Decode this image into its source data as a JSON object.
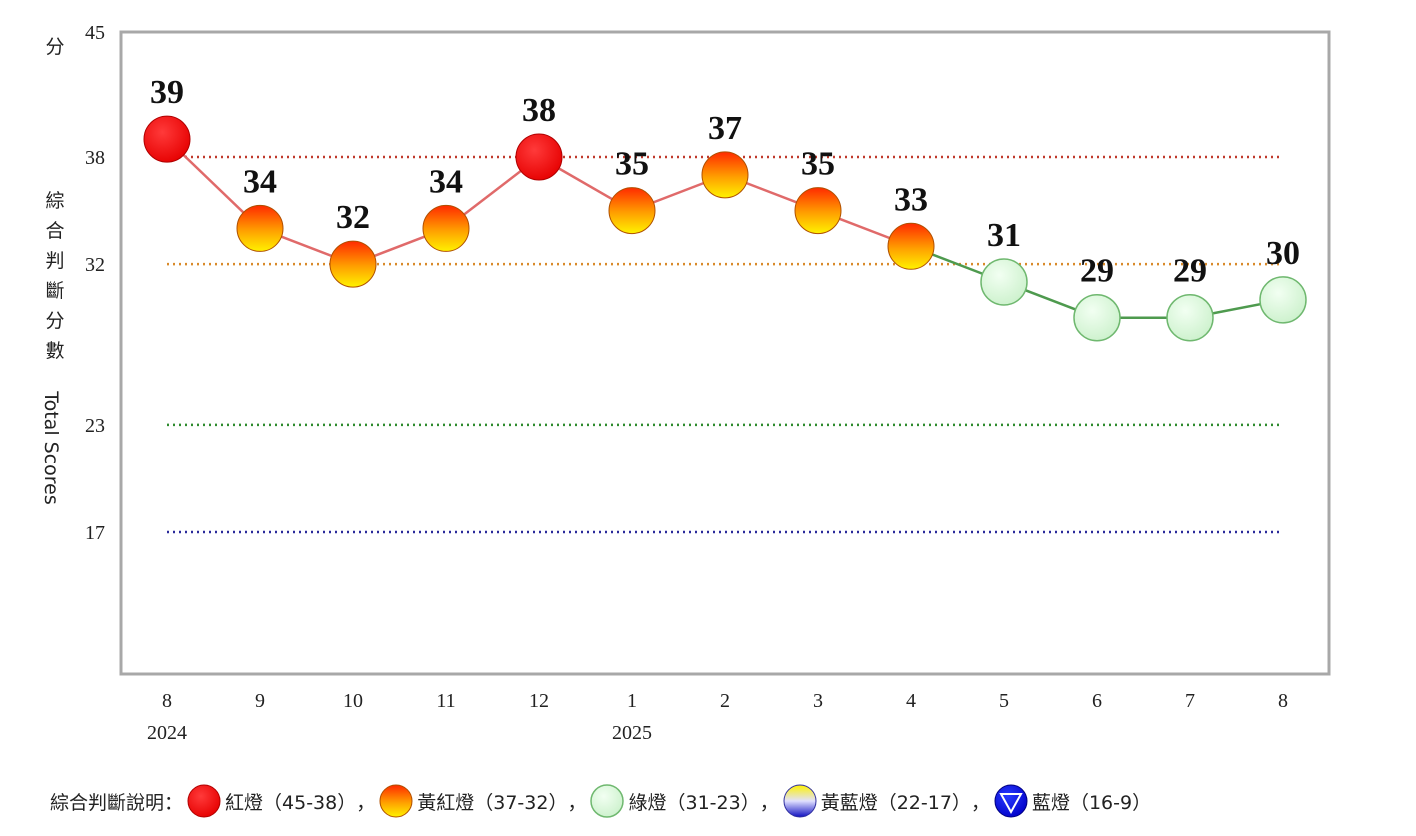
{
  "chart_data": {
    "type": "line",
    "ylabel_unit": "分",
    "ylabel_cn": "綜合判斷分數",
    "ylabel_en": "Total Scores",
    "ylim": [
      0,
      45
    ],
    "yticks": [
      45,
      38,
      32,
      23,
      17
    ],
    "x": [
      "8",
      "9",
      "10",
      "11",
      "12",
      "1",
      "2",
      "3",
      "4",
      "5",
      "6",
      "7",
      "8"
    ],
    "year_labels": [
      {
        "index": 0,
        "label": "2024"
      },
      {
        "index": 5,
        "label": "2025"
      }
    ],
    "values": [
      39,
      34,
      32,
      34,
      38,
      35,
      37,
      35,
      33,
      31,
      29,
      29,
      30
    ],
    "lights": [
      "red",
      "yellow-red",
      "yellow-red",
      "yellow-red",
      "red",
      "yellow-red",
      "yellow-red",
      "yellow-red",
      "yellow-red",
      "green",
      "green",
      "green",
      "green"
    ],
    "thresholds": [
      {
        "value": 38,
        "color": "#c0392b"
      },
      {
        "value": 32,
        "color": "#d98a2a"
      },
      {
        "value": 23,
        "color": "#2e8b2e"
      },
      {
        "value": 17,
        "color": "#2a2a9a"
      }
    ],
    "line_colors": {
      "red": "#e06a6a",
      "green": "#4e9a4e"
    },
    "grid": false
  },
  "legend": {
    "title": "綜合判斷說明：",
    "items": [
      {
        "label": "紅燈（45-38）",
        "icon": "red-light-icon",
        "sep": "，"
      },
      {
        "label": "黃紅燈（37-32）",
        "icon": "yellow-red-light-icon",
        "sep": "，"
      },
      {
        "label": "綠燈（31-23）",
        "icon": "green-light-icon",
        "sep": "，"
      },
      {
        "label": "黃藍燈（22-17）",
        "icon": "yellow-blue-light-icon",
        "sep": "，"
      },
      {
        "label": "藍燈（16-9）",
        "icon": "blue-light-icon",
        "sep": ""
      }
    ]
  }
}
